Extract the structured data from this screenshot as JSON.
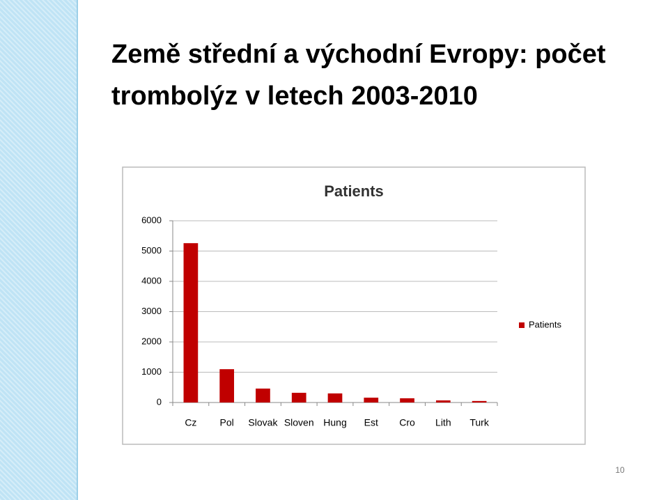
{
  "title": "Země střední a východní Evropy: počet trombolýz v letech 2003-2010",
  "page_number": "10",
  "chart_data": {
    "type": "bar",
    "title": "Patients",
    "categories": [
      "Cz",
      "Pol",
      "Slovak",
      "Sloven",
      "Hung",
      "Est",
      "Cro",
      "Lith",
      "Turk"
    ],
    "series": [
      {
        "name": "Patients",
        "color": "#c00000",
        "values": [
          5260,
          1100,
          460,
          320,
          300,
          160,
          140,
          70,
          50
        ]
      }
    ],
    "ylim": [
      0,
      6000
    ],
    "yticks": [
      0,
      1000,
      2000,
      3000,
      4000,
      5000,
      6000
    ],
    "grid": true,
    "legend": "right"
  }
}
